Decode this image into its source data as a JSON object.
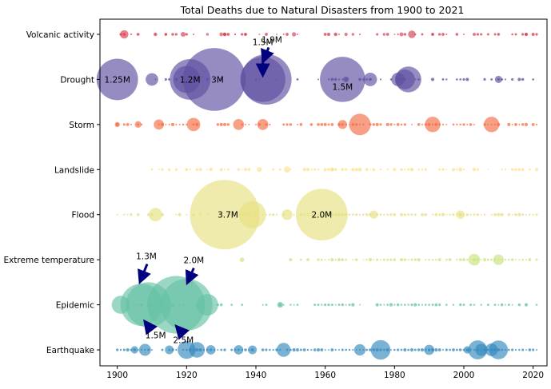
{
  "chart_data": {
    "type": "scatter",
    "title": "Total Deaths due to Natural Disasters from 1900 to 2021",
    "xlabel": "",
    "ylabel": "",
    "xlim": [
      1895,
      2024
    ],
    "x_ticks": [
      1900,
      1920,
      1940,
      1960,
      1980,
      2000,
      2020
    ],
    "grid": false,
    "categories": [
      "Earthquake",
      "Epidemic",
      "Extreme temperature ",
      "Flood",
      "Landslide",
      "Storm",
      "Drought",
      "Volcanic activity"
    ],
    "colors": {
      "Volcanic activity": "#d53e4f",
      "Drought": "#5e4fa2",
      "Storm": "#f46d43",
      "Landslide": "#fee08b",
      "Flood": "#e6e080",
      "Extreme temperature ": "#c9e47e",
      "Epidemic": "#66c2a5",
      "Earthquake": "#3288bd"
    },
    "series": [
      {
        "category": "Volcanic activity",
        "points": [
          {
            "x": 1902,
            "deaths": 29000
          },
          {
            "x": 1906,
            "deaths": 300
          },
          {
            "x": 1911,
            "deaths": 1300
          },
          {
            "x": 1914,
            "deaths": 200
          },
          {
            "x": 1919,
            "deaths": 5100
          },
          {
            "x": 1926,
            "deaths": 100
          },
          {
            "x": 1930,
            "deaths": 1400
          },
          {
            "x": 1931,
            "deaths": 1300
          },
          {
            "x": 1937,
            "deaths": 500
          },
          {
            "x": 1951,
            "deaths": 3000
          },
          {
            "x": 1963,
            "deaths": 1200
          },
          {
            "x": 1966,
            "deaths": 800
          },
          {
            "x": 1968,
            "deaths": 100
          },
          {
            "x": 1977,
            "deaths": 200
          },
          {
            "x": 1982,
            "deaths": 2000
          },
          {
            "x": 1985,
            "deaths": 21800
          },
          {
            "x": 1991,
            "deaths": 700
          },
          {
            "x": 2010,
            "deaths": 300
          },
          {
            "x": 2018,
            "deaths": 600
          }
        ]
      },
      {
        "category": "Drought",
        "points": [
          {
            "x": 1900,
            "deaths": 1250000
          },
          {
            "x": 1910,
            "deaths": 85000
          },
          {
            "x": 1920,
            "deaths": 500000
          },
          {
            "x": 1921,
            "deaths": 1200000
          },
          {
            "x": 1928,
            "deaths": 3000000
          },
          {
            "x": 1942,
            "deaths": 1500000
          },
          {
            "x": 1943,
            "deaths": 1900000
          },
          {
            "x": 1965,
            "deaths": 1500000
          },
          {
            "x": 1966,
            "deaths": 10000
          },
          {
            "x": 1973,
            "deaths": 100000
          },
          {
            "x": 1981,
            "deaths": 100000
          },
          {
            "x": 1983,
            "deaths": 250000
          },
          {
            "x": 1984,
            "deaths": 450000
          },
          {
            "x": 2010,
            "deaths": 20000
          }
        ]
      },
      {
        "category": "Storm",
        "points": [
          {
            "x": 1900,
            "deaths": 6000
          },
          {
            "x": 1906,
            "deaths": 15000
          },
          {
            "x": 1912,
            "deaths": 50000
          },
          {
            "x": 1922,
            "deaths": 100000
          },
          {
            "x": 1935,
            "deaths": 60000
          },
          {
            "x": 1942,
            "deaths": 60000
          },
          {
            "x": 1965,
            "deaths": 36000
          },
          {
            "x": 1970,
            "deaths": 300000
          },
          {
            "x": 1991,
            "deaths": 140000
          },
          {
            "x": 2008,
            "deaths": 140000
          }
        ]
      },
      {
        "category": "Landslide",
        "points": [
          {
            "x": 1920,
            "deaths": 100
          },
          {
            "x": 1941,
            "deaths": 5000
          },
          {
            "x": 1949,
            "deaths": 12000
          },
          {
            "x": 1962,
            "deaths": 2000
          },
          {
            "x": 1970,
            "deaths": 2000
          },
          {
            "x": 1985,
            "deaths": 1000
          },
          {
            "x": 1999,
            "deaths": 2000
          }
        ]
      },
      {
        "category": "Flood",
        "points": [
          {
            "x": 1911,
            "deaths": 100000
          },
          {
            "x": 1931,
            "deaths": 3700000
          },
          {
            "x": 1939,
            "deaths": 500000
          },
          {
            "x": 1949,
            "deaths": 57000
          },
          {
            "x": 1959,
            "deaths": 2000000
          },
          {
            "x": 1974,
            "deaths": 28700
          },
          {
            "x": 1999,
            "deaths": 30000
          }
        ]
      },
      {
        "category": "Extreme temperature ",
        "points": [
          {
            "x": 1936,
            "deaths": 4000
          },
          {
            "x": 2003,
            "deaths": 72000
          },
          {
            "x": 2010,
            "deaths": 56000
          }
        ]
      },
      {
        "category": "Epidemic",
        "points": [
          {
            "x": 1901,
            "deaths": 200000
          },
          {
            "x": 1907,
            "deaths": 1300000
          },
          {
            "x": 1909,
            "deaths": 1500000
          },
          {
            "x": 1917,
            "deaths": 2500000
          },
          {
            "x": 1920,
            "deaths": 2000000
          },
          {
            "x": 1926,
            "deaths": 300000
          },
          {
            "x": 1947,
            "deaths": 10000
          }
        ]
      },
      {
        "category": "Earthquake",
        "points": [
          {
            "x": 1905,
            "deaths": 20000
          },
          {
            "x": 1908,
            "deaths": 75000
          },
          {
            "x": 1915,
            "deaths": 32600
          },
          {
            "x": 1920,
            "deaths": 200000
          },
          {
            "x": 1923,
            "deaths": 143000
          },
          {
            "x": 1927,
            "deaths": 40000
          },
          {
            "x": 1935,
            "deaths": 40000
          },
          {
            "x": 1939,
            "deaths": 32700
          },
          {
            "x": 1948,
            "deaths": 110000
          },
          {
            "x": 1970,
            "deaths": 67000
          },
          {
            "x": 1976,
            "deaths": 242000
          },
          {
            "x": 1990,
            "deaths": 50000
          },
          {
            "x": 2001,
            "deaths": 20000
          },
          {
            "x": 2004,
            "deaths": 226000
          },
          {
            "x": 2005,
            "deaths": 76000
          },
          {
            "x": 2008,
            "deaths": 87000
          },
          {
            "x": 2010,
            "deaths": 222000
          }
        ]
      }
    ],
    "annotations": [
      {
        "text": "1.25M",
        "category": "Drought",
        "x": 1900
      },
      {
        "text": "1.2M",
        "category": "Drought",
        "x": 1921
      },
      {
        "text": "3M",
        "category": "Drought",
        "x": 1928
      },
      {
        "text": "1.5M",
        "category": "Drought",
        "x": 1942,
        "arrow": true
      },
      {
        "text": "1.9M",
        "category": "Drought",
        "x": 1943,
        "arrow": true
      },
      {
        "text": "1.5M",
        "category": "Drought",
        "x": 1965
      },
      {
        "text": "3.7M",
        "category": "Flood",
        "x": 1931
      },
      {
        "text": "2.0M",
        "category": "Flood",
        "x": 1959
      },
      {
        "text": "1.3M",
        "category": "Epidemic",
        "x": 1907,
        "arrow": true
      },
      {
        "text": "2.0M",
        "category": "Epidemic",
        "x": 1920,
        "arrow": true
      },
      {
        "text": "1.5M",
        "category": "Epidemic",
        "x": 1909,
        "arrow": true
      },
      {
        "text": "2.5M",
        "category": "Epidemic",
        "x": 1917,
        "arrow": true
      }
    ]
  }
}
